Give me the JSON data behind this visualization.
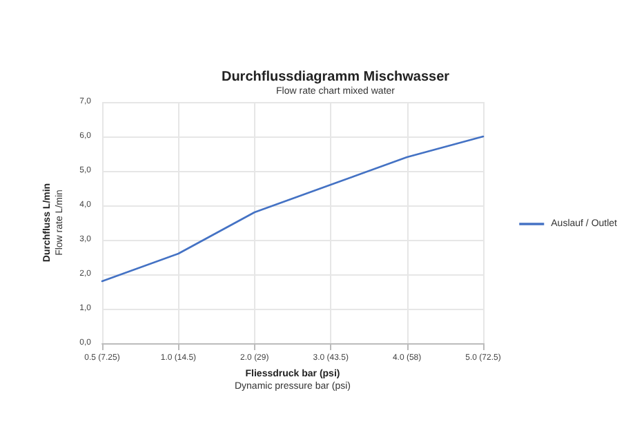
{
  "chart_data": {
    "type": "line",
    "title": "Durchflussdiagramm Mischwasser",
    "subtitle": "Flow rate chart mixed water",
    "xlabel": "Fliessdruck bar (psi)\nDynamic pressure bar (psi)",
    "ylabel": "Durchfluss L/min\nFlow rate L/min",
    "categories": [
      "0.5 (7.25)",
      "1.0 (14.5)",
      "2.0 (29)",
      "3.0 (43.5)",
      "4.0 (58)",
      "5.0 (72.5)"
    ],
    "series": [
      {
        "name": "Auslauf / Outlet",
        "color": "#4472c4",
        "values": [
          1.8,
          2.6,
          3.8,
          4.6,
          5.4,
          6.0
        ]
      }
    ],
    "ylim": [
      0,
      7
    ],
    "yticks": [
      {
        "value": 0,
        "label": "0,0"
      },
      {
        "value": 1,
        "label": "1,0"
      },
      {
        "value": 2,
        "label": "2,0"
      },
      {
        "value": 3,
        "label": "3,0"
      },
      {
        "value": 4,
        "label": "4,0"
      },
      {
        "value": 5,
        "label": "5,0"
      },
      {
        "value": 6,
        "label": "6,0"
      },
      {
        "value": 7,
        "label": "7,0"
      }
    ],
    "grid": true,
    "legend": "right",
    "marker": "none",
    "line_style": "solid"
  }
}
